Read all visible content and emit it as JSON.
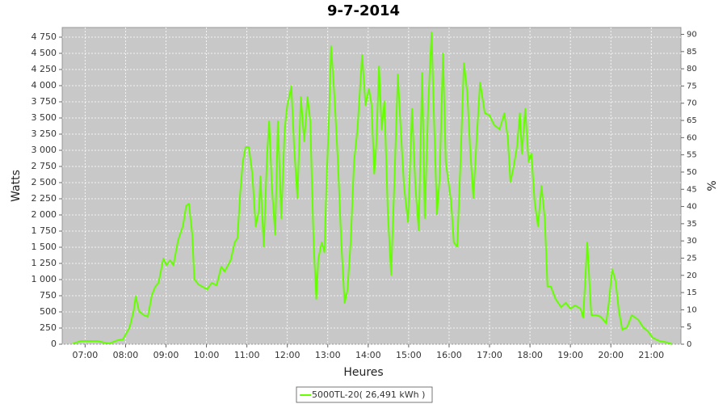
{
  "chart_data": {
    "type": "line",
    "title": "9-7-2014",
    "x_label": "Heures",
    "y_label": "Watts",
    "y2_label": "%",
    "x": [
      "06:42",
      "06:54",
      "07:18",
      "07:28",
      "07:36",
      "07:48",
      "07:56",
      "08:06",
      "08:12",
      "08:15",
      "08:20",
      "08:27",
      "08:33",
      "08:39",
      "08:44",
      "08:49",
      "08:56",
      "09:01",
      "09:06",
      "09:11",
      "09:18",
      "09:25",
      "09:30",
      "09:34",
      "09:39",
      "09:42",
      "09:48",
      "09:54",
      "10:01",
      "10:08",
      "10:15",
      "10:22",
      "10:27",
      "10:36",
      "10:42",
      "10:46",
      "10:50",
      "10:54",
      "10:58",
      "11:03",
      "11:08",
      "11:13",
      "11:18",
      "11:20",
      "11:25",
      "11:30",
      "11:33",
      "11:37",
      "11:42",
      "11:46",
      "11:51",
      "11:56",
      "12:00",
      "12:06",
      "12:10",
      "12:15",
      "12:20",
      "12:25",
      "12:30",
      "12:34",
      "12:39",
      "12:43",
      "12:46",
      "12:51",
      "12:55",
      "12:58",
      "13:02",
      "13:05",
      "13:10",
      "13:15",
      "13:20",
      "13:25",
      "13:29",
      "13:34",
      "13:39",
      "13:44",
      "13:51",
      "13:56",
      "14:01",
      "14:05",
      "14:09",
      "14:12",
      "14:16",
      "14:20",
      "14:24",
      "14:29",
      "14:34",
      "14:39",
      "14:44",
      "14:47",
      "14:53",
      "14:59",
      "15:05",
      "15:10",
      "15:15",
      "15:20",
      "15:24",
      "15:29",
      "15:34",
      "15:37",
      "15:42",
      "15:46",
      "15:51",
      "15:55",
      "16:03",
      "16:07",
      "16:12",
      "16:17",
      "16:22",
      "16:27",
      "16:31",
      "16:36",
      "16:41",
      "16:46",
      "16:53",
      "17:00",
      "17:07",
      "17:15",
      "17:22",
      "17:27",
      "17:31",
      "17:36",
      "17:41",
      "17:45",
      "17:48",
      "17:53",
      "17:58",
      "18:02",
      "18:07",
      "18:12",
      "18:17",
      "18:22",
      "18:26",
      "18:31",
      "18:38",
      "18:46",
      "18:53",
      "19:00",
      "19:07",
      "19:15",
      "19:19",
      "19:25",
      "19:31",
      "19:38",
      "19:45",
      "19:53",
      "19:57",
      "20:02",
      "20:07",
      "20:12",
      "20:17",
      "20:24",
      "20:31",
      "20:41",
      "20:48",
      "20:55",
      "21:02",
      "21:12",
      "21:24",
      "21:31"
    ],
    "series": [
      {
        "name": "5000TL-20( 26,491 kWh )",
        "color": "#66ff00",
        "values": [
          10,
          50,
          50,
          25,
          10,
          60,
          75,
          260,
          510,
          740,
          510,
          450,
          425,
          760,
          890,
          950,
          1325,
          1225,
          1300,
          1225,
          1610,
          1825,
          2140,
          2175,
          1700,
          1010,
          925,
          890,
          850,
          950,
          910,
          1200,
          1125,
          1300,
          1575,
          1640,
          2325,
          2825,
          3050,
          3050,
          2640,
          1825,
          2075,
          2600,
          1510,
          2950,
          3450,
          2450,
          1700,
          3450,
          1950,
          3325,
          3700,
          3990,
          3075,
          2260,
          3825,
          3140,
          3825,
          3450,
          1575,
          700,
          1325,
          1575,
          1425,
          2450,
          3575,
          4610,
          3825,
          2825,
          1575,
          640,
          825,
          1575,
          2825,
          3325,
          4475,
          3700,
          3950,
          3700,
          2640,
          3075,
          4300,
          3325,
          3760,
          2075,
          1075,
          2575,
          4175,
          3575,
          2450,
          1890,
          3640,
          2450,
          1760,
          4200,
          1950,
          3700,
          4825,
          3700,
          2010,
          2575,
          4500,
          2825,
          2200,
          1575,
          1510,
          2825,
          4350,
          3890,
          3075,
          2260,
          3200,
          4050,
          3575,
          3540,
          3390,
          3325,
          3575,
          3200,
          2510,
          2760,
          3075,
          3575,
          2950,
          3640,
          2825,
          2950,
          2200,
          1825,
          2450,
          1950,
          890,
          890,
          700,
          575,
          640,
          550,
          600,
          550,
          410,
          1575,
          450,
          450,
          425,
          325,
          640,
          1160,
          975,
          510,
          225,
          260,
          450,
          375,
          260,
          200,
          100,
          50,
          25,
          0
        ]
      }
    ],
    "xlim": [
      "06:26",
      "21:44"
    ],
    "xticks": [
      "07:00",
      "08:00",
      "09:00",
      "10:00",
      "11:00",
      "12:00",
      "13:00",
      "14:00",
      "15:00",
      "16:00",
      "17:00",
      "18:00",
      "19:00",
      "20:00",
      "21:00"
    ],
    "ylim": [
      0,
      4900
    ],
    "yticks": [
      0,
      250,
      500,
      750,
      {
        "value": 1000,
        "label": "1 000"
      },
      {
        "value": 1250,
        "label": "1 250"
      },
      {
        "value": 1500,
        "label": "1 500"
      },
      {
        "value": 1750,
        "label": "1 750"
      },
      {
        "value": 2000,
        "label": "2 000"
      },
      {
        "value": 2250,
        "label": "2 250"
      },
      {
        "value": 2500,
        "label": "2 500"
      },
      {
        "value": 2750,
        "label": "2 750"
      },
      {
        "value": 3000,
        "label": "3 000"
      },
      {
        "value": 3250,
        "label": "3 250"
      },
      {
        "value": 3500,
        "label": "3 500"
      },
      {
        "value": 3750,
        "label": "3 750"
      },
      {
        "value": 4000,
        "label": "4 000"
      },
      {
        "value": 4250,
        "label": "4 250"
      },
      {
        "value": 4500,
        "label": "4 500"
      },
      {
        "value": 4750,
        "label": "4 750"
      }
    ],
    "y2lim": [
      0,
      92
    ],
    "y2ticks": [
      0,
      5,
      10,
      15,
      20,
      25,
      30,
      35,
      40,
      45,
      50,
      55,
      60,
      65,
      70,
      75,
      80,
      85,
      90
    ],
    "grid": true
  }
}
